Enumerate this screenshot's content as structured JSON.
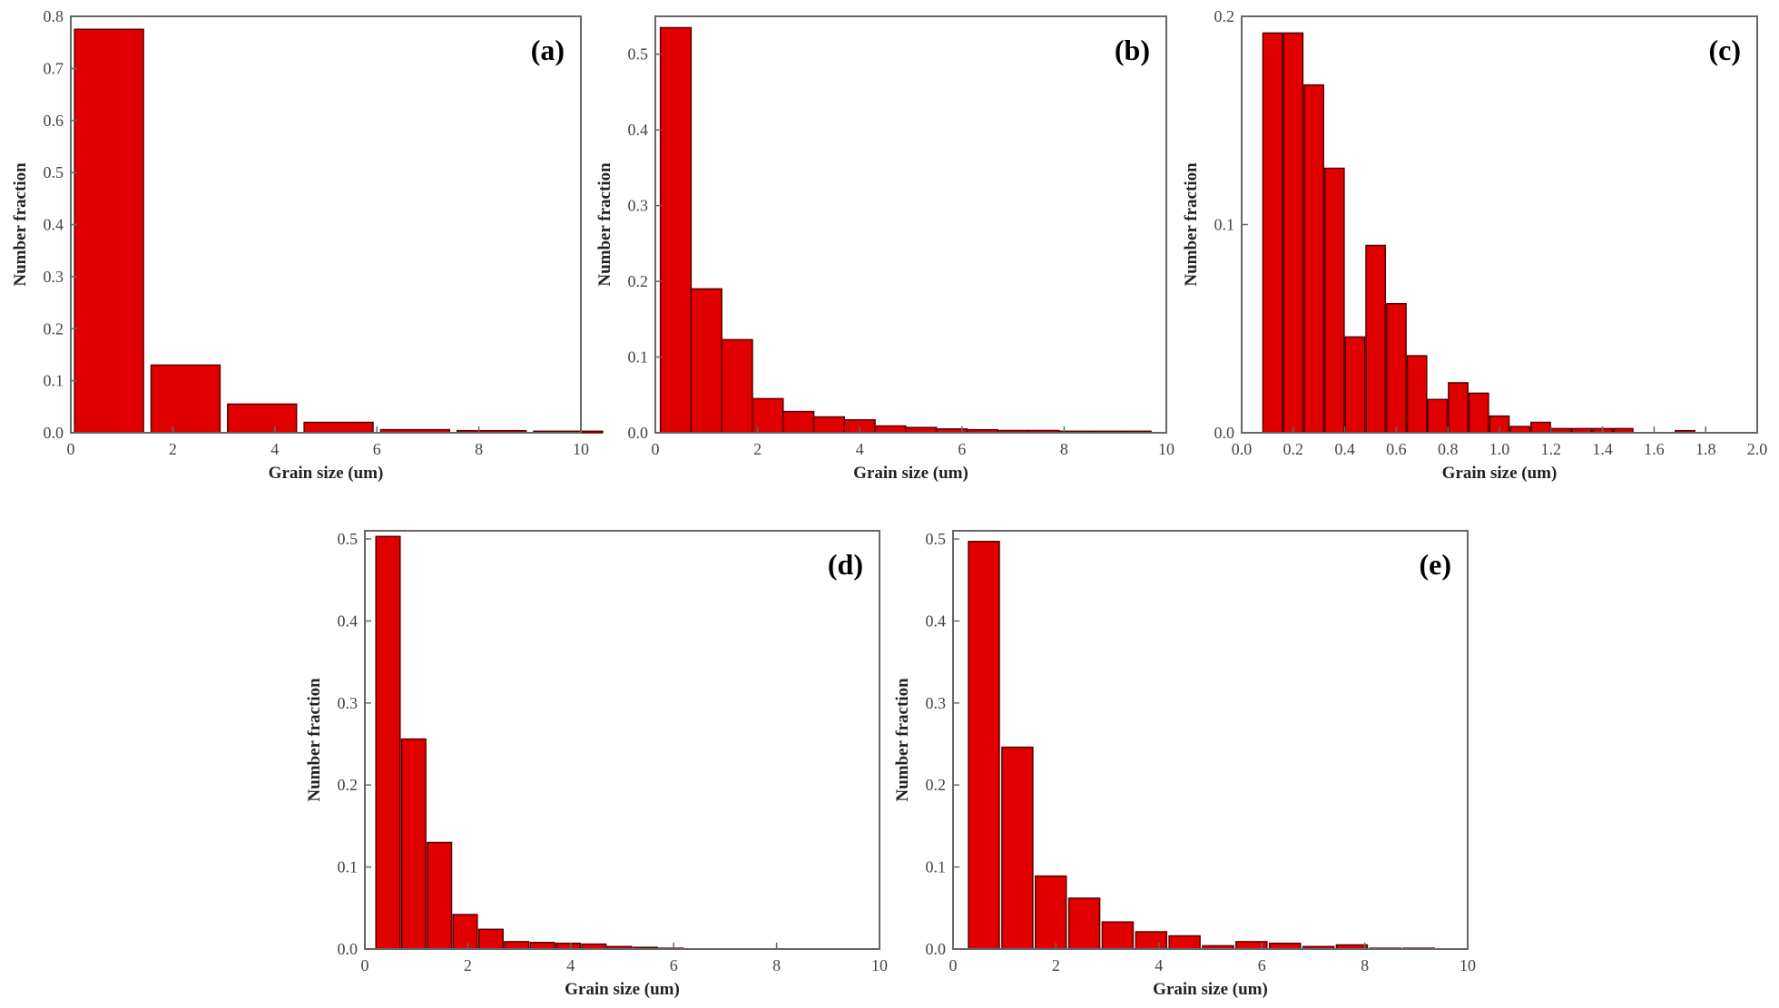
{
  "colors": {
    "bar_fill": "#e00000",
    "bar_stroke": "#5a0000",
    "axis": "#666666"
  },
  "chart_data": [
    {
      "panel": "(a)",
      "type": "bar",
      "xlabel": "Grain size (um)",
      "ylabel": "Number fraction",
      "xlim": [
        0,
        10
      ],
      "ylim": [
        0,
        0.8
      ],
      "xticks": [
        0,
        2,
        4,
        6,
        8,
        10
      ],
      "xtick_labels": [
        "0",
        "2",
        "4",
        "6",
        "8",
        "10"
      ],
      "yticks": [
        0,
        0.1,
        0.2,
        0.3,
        0.4,
        0.5,
        0.6,
        0.7,
        0.8
      ],
      "ytick_labels": [
        "0.0",
        "0.1",
        "0.2",
        "0.3",
        "0.4",
        "0.5",
        "0.6",
        "0.7",
        "0.8"
      ],
      "bin_width": 1.35,
      "x": [
        0.75,
        2.25,
        3.75,
        5.25,
        6.75,
        8.25,
        9.75
      ],
      "values": [
        0.775,
        0.13,
        0.055,
        0.02,
        0.006,
        0.004,
        0.003
      ]
    },
    {
      "panel": "(b)",
      "type": "bar",
      "xlabel": "Grain size (um)",
      "ylabel": "Number fraction",
      "xlim": [
        0,
        10
      ],
      "ylim": [
        0,
        0.55
      ],
      "xticks": [
        0,
        2,
        4,
        6,
        8,
        10
      ],
      "xtick_labels": [
        "0",
        "2",
        "4",
        "6",
        "8",
        "10"
      ],
      "yticks": [
        0,
        0.1,
        0.2,
        0.3,
        0.4,
        0.5
      ],
      "ytick_labels": [
        "0.0",
        "0.1",
        "0.2",
        "0.3",
        "0.4",
        "0.5"
      ],
      "bin_width": 0.6,
      "x": [
        0.4,
        1.0,
        1.6,
        2.2,
        2.8,
        3.4,
        4.0,
        4.6,
        5.2,
        5.8,
        6.4,
        7.0,
        7.6,
        8.2,
        8.8,
        9.4
      ],
      "values": [
        0.535,
        0.19,
        0.123,
        0.045,
        0.028,
        0.021,
        0.017,
        0.009,
        0.007,
        0.005,
        0.004,
        0.003,
        0.003,
        0.002,
        0.002,
        0.002
      ]
    },
    {
      "panel": "(c)",
      "type": "bar",
      "xlabel": "Grain size (um)",
      "ylabel": "Number fraction",
      "xlim": [
        0,
        2.0
      ],
      "ylim": [
        0,
        0.2
      ],
      "xticks": [
        0,
        0.2,
        0.4,
        0.6,
        0.8,
        1.0,
        1.2,
        1.4,
        1.6,
        1.8,
        2.0
      ],
      "xtick_labels": [
        "0.0",
        "0.2",
        "0.4",
        "0.6",
        "0.8",
        "1.0",
        "1.2",
        "1.4",
        "1.6",
        "1.8",
        "2.0"
      ],
      "yticks": [
        0,
        0.1,
        0.2
      ],
      "ytick_labels": [
        "0.0",
        "0.1",
        "0.2"
      ],
      "bin_width": 0.075,
      "x": [
        0.12,
        0.2,
        0.28,
        0.36,
        0.44,
        0.52,
        0.6,
        0.68,
        0.76,
        0.84,
        0.92,
        1.0,
        1.08,
        1.16,
        1.24,
        1.32,
        1.4,
        1.48,
        1.56,
        1.64,
        1.72,
        1.8,
        1.88
      ],
      "values": [
        0.192,
        0.192,
        0.167,
        0.127,
        0.046,
        0.09,
        0.062,
        0.037,
        0.016,
        0.024,
        0.019,
        0.008,
        0.003,
        0.005,
        0.002,
        0.002,
        0.002,
        0.002,
        0.0,
        0.0,
        0.001,
        0.0,
        0.0
      ]
    },
    {
      "panel": "(d)",
      "type": "bar",
      "xlabel": "Grain size (um)",
      "ylabel": "Number fraction",
      "xlim": [
        0,
        10
      ],
      "ylim": [
        0,
        0.51
      ],
      "xticks": [
        0,
        2,
        4,
        6,
        8,
        10
      ],
      "xtick_labels": [
        "0",
        "2",
        "4",
        "6",
        "8",
        "10"
      ],
      "yticks": [
        0,
        0.1,
        0.2,
        0.3,
        0.4,
        0.5
      ],
      "ytick_labels": [
        "0.0",
        "0.1",
        "0.2",
        "0.3",
        "0.4",
        "0.5"
      ],
      "bin_width": 0.47,
      "x": [
        0.45,
        0.95,
        1.45,
        1.95,
        2.45,
        2.95,
        3.45,
        3.95,
        4.45,
        4.95,
        5.45,
        5.95
      ],
      "values": [
        0.503,
        0.256,
        0.13,
        0.042,
        0.024,
        0.009,
        0.008,
        0.007,
        0.006,
        0.003,
        0.002,
        0.001
      ]
    },
    {
      "panel": "(e)",
      "type": "bar",
      "xlabel": "Grain size (um)",
      "ylabel": "Number fraction",
      "xlim": [
        0,
        10
      ],
      "ylim": [
        0,
        0.51
      ],
      "xticks": [
        0,
        2,
        4,
        6,
        8,
        10
      ],
      "xtick_labels": [
        "0",
        "2",
        "4",
        "6",
        "8",
        "10"
      ],
      "yticks": [
        0,
        0.1,
        0.2,
        0.3,
        0.4,
        0.5
      ],
      "ytick_labels": [
        "0.0",
        "0.1",
        "0.2",
        "0.3",
        "0.4",
        "0.5"
      ],
      "bin_width": 0.6,
      "x": [
        0.6,
        1.25,
        1.9,
        2.55,
        3.2,
        3.85,
        4.5,
        5.15,
        5.8,
        6.45,
        7.1,
        7.75,
        8.4,
        9.05
      ],
      "values": [
        0.497,
        0.246,
        0.089,
        0.062,
        0.033,
        0.021,
        0.016,
        0.004,
        0.009,
        0.007,
        0.003,
        0.005,
        0.001,
        0.001
      ]
    }
  ]
}
